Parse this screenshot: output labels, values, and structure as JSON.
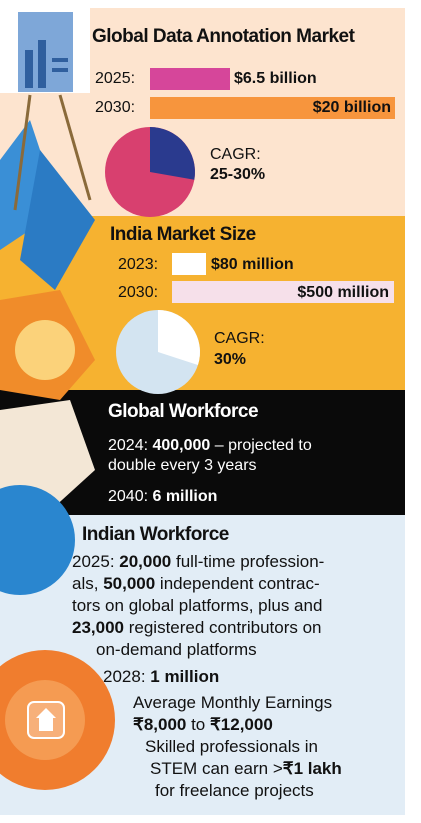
{
  "global_market": {
    "title": "Global Data Annotation Market",
    "rows": [
      {
        "year": "2025:",
        "value": "$6.5 billion"
      },
      {
        "year": "2030:",
        "value": "$20 billion"
      }
    ],
    "cagr_label": "CAGR:",
    "cagr_value": "25-30%"
  },
  "india_market": {
    "title": "India Market Size",
    "rows": [
      {
        "year": "2023:",
        "value": "$80 million"
      },
      {
        "year": "2030:",
        "value": "$500 million"
      }
    ],
    "cagr_label": "CAGR:",
    "cagr_value": "30%"
  },
  "global_workforce": {
    "title": "Global Workforce",
    "lines": [
      [
        "2024: ",
        "400,000",
        " – projected to"
      ],
      [
        "double every 3 years"
      ],
      [
        "2040: ",
        "6 million"
      ]
    ]
  },
  "indian_workforce": {
    "title": "Indian Workforce",
    "lines": [
      [
        "2025: ",
        "20,000",
        " full-time profession-"
      ],
      [
        "als, ",
        "50,000",
        " independent contrac-"
      ],
      [
        "tors on global platforms, plus and"
      ],
      [
        "23,000",
        " registered contributors on"
      ],
      [
        "on-demand platforms"
      ],
      [
        "2028: ",
        "1 million"
      ],
      [
        "Average Monthly Earnings"
      ],
      [
        "₹8,000",
        " to ",
        "₹12,000"
      ],
      [
        "Skilled professionals in"
      ],
      [
        "STEM can earn >",
        "₹1 lakh"
      ],
      [
        "for freelance projects"
      ]
    ]
  }
}
